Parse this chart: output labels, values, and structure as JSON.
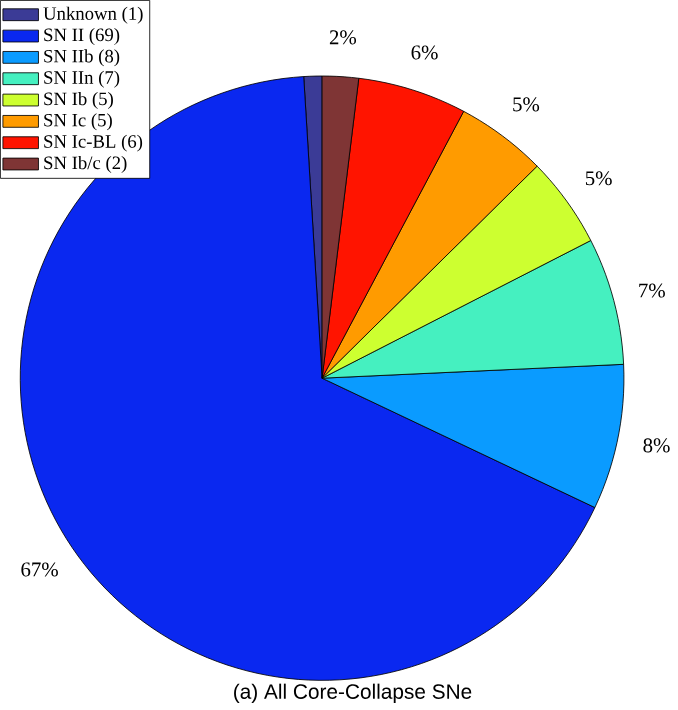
{
  "chart_data": {
    "type": "pie",
    "title": "(a) All Core-Collapse SNe",
    "categories": [
      "Unknown (1)",
      "SN II (69)",
      "SN IIb (8)",
      "SN IIn (7)",
      "SN Ib (5)",
      "SN Ic (5)",
      "SN Ic-BL (6)",
      "SN Ib/c (2)"
    ],
    "values": [
      0.97,
      66.99,
      7.77,
      6.8,
      4.85,
      4.85,
      5.83,
      1.94
    ],
    "colors": [
      "#3b3b96",
      "#0a28f0",
      "#0a9bff",
      "#45f0c0",
      "#cdff30",
      "#ff9b00",
      "#ff1400",
      "#7f3535"
    ],
    "value_labels": [
      null,
      "67%",
      "8%",
      "7%",
      "5%",
      "5%",
      "6%",
      "2%"
    ],
    "legend": "top left"
  }
}
